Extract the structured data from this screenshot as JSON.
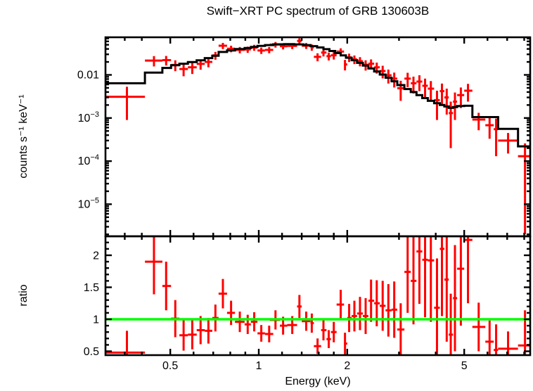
{
  "title": "Swift−XRT PC spectrum of GRB 130603B",
  "chart_data": {
    "type": "scatter",
    "description": "Two-panel X-ray spectrum: top = counts spectrum (log-log) with red data crosses and black folded-model histogram; bottom = data/model ratio (linear y, log x) with green unity line.",
    "title": "Swift−XRT PC spectrum of GRB 130603B",
    "xlabel": "Energy (keV)",
    "ylabel_top": "counts s⁻¹ keV⁻¹",
    "ylabel_bottom": "ratio",
    "x_scale": "log",
    "x_range": [
      0.3,
      8.38
    ],
    "top_y_scale": "log",
    "top_y_range": [
      1.8e-06,
      0.0746
    ],
    "bottom_y_scale": "linear",
    "bottom_y_range": [
      0.44,
      2.3
    ],
    "ratio_reference": 1,
    "grid": false,
    "legend": "none",
    "colors": {
      "data": "#ff0000",
      "model": "#000000",
      "ratio_line": "#00ff00",
      "frame": "#000000",
      "background": "#ffffff"
    },
    "x_ticks_major": [
      {
        "v": 0.5,
        "label": "0.5"
      },
      {
        "v": 1,
        "label": "1"
      },
      {
        "v": 2,
        "label": "2"
      },
      {
        "v": 5,
        "label": "5"
      }
    ],
    "x_ticks_minor": [
      0.35,
      0.4,
      0.6,
      0.7,
      0.8,
      0.9,
      1.2,
      1.4,
      1.6,
      1.8,
      3,
      4,
      6,
      7,
      8
    ],
    "top_y_ticks": [
      {
        "v": 0.01,
        "label": "0.01"
      },
      {
        "v": 0.001,
        "base": "10",
        "exp": "−3"
      },
      {
        "v": 0.0001,
        "base": "10",
        "exp": "−4"
      },
      {
        "v": 1e-05,
        "base": "10",
        "exp": "−5"
      }
    ],
    "bottom_y_ticks": [
      {
        "v": 0.5,
        "label": "0.5"
      },
      {
        "v": 1,
        "label": "1"
      },
      {
        "v": 1.5,
        "label": "1.5"
      },
      {
        "v": 2,
        "label": "2"
      }
    ],
    "model_steps": [
      [
        0.3,
        0.41,
        0.0064
      ],
      [
        0.41,
        0.47,
        0.0113
      ],
      [
        0.47,
        0.503,
        0.0145
      ],
      [
        0.503,
        0.537,
        0.0168
      ],
      [
        0.537,
        0.574,
        0.0182
      ],
      [
        0.574,
        0.615,
        0.0198
      ],
      [
        0.615,
        0.655,
        0.0218
      ],
      [
        0.655,
        0.695,
        0.0245
      ],
      [
        0.695,
        0.73,
        0.0278
      ],
      [
        0.73,
        0.78,
        0.034
      ],
      [
        0.78,
        0.83,
        0.0368
      ],
      [
        0.83,
        0.895,
        0.0397
      ],
      [
        0.895,
        0.94,
        0.0422
      ],
      [
        0.94,
        0.99,
        0.0446
      ],
      [
        0.99,
        1.05,
        0.047
      ],
      [
        1.05,
        1.12,
        0.0492
      ],
      [
        1.12,
        1.22,
        0.0512
      ],
      [
        1.22,
        1.32,
        0.0518
      ],
      [
        1.32,
        1.42,
        0.051
      ],
      [
        1.42,
        1.5,
        0.0492
      ],
      [
        1.5,
        1.58,
        0.0465
      ],
      [
        1.58,
        1.66,
        0.0432
      ],
      [
        1.66,
        1.74,
        0.0396
      ],
      [
        1.74,
        1.82,
        0.0358
      ],
      [
        1.82,
        1.9,
        0.032
      ],
      [
        1.9,
        1.98,
        0.0284
      ],
      [
        1.98,
        2.07,
        0.025
      ],
      [
        2.07,
        2.16,
        0.0219
      ],
      [
        2.16,
        2.26,
        0.019
      ],
      [
        2.26,
        2.36,
        0.0164
      ],
      [
        2.36,
        2.47,
        0.0141
      ],
      [
        2.47,
        2.58,
        0.012
      ],
      [
        2.58,
        2.7,
        0.0102
      ],
      [
        2.7,
        2.83,
        0.0086
      ],
      [
        2.83,
        2.96,
        0.0071
      ],
      [
        2.96,
        3.13,
        0.0058
      ],
      [
        3.13,
        3.29,
        0.0047
      ],
      [
        3.29,
        3.44,
        0.004
      ],
      [
        3.44,
        3.6,
        0.0034
      ],
      [
        3.6,
        3.76,
        0.0029
      ],
      [
        3.76,
        3.95,
        0.0025
      ],
      [
        3.95,
        4.13,
        0.0022
      ],
      [
        4.13,
        4.28,
        0.002
      ],
      [
        4.28,
        4.43,
        0.00185
      ],
      [
        4.43,
        4.58,
        0.00172
      ],
      [
        4.58,
        4.73,
        0.0018
      ],
      [
        4.73,
        5.0,
        0.0019
      ],
      [
        5.0,
        5.33,
        0.00192
      ],
      [
        5.33,
        6.52,
        0.00105
      ],
      [
        6.52,
        7.62,
        0.00056
      ],
      [
        7.62,
        8.38,
        0.00022
      ]
    ],
    "points_format": [
      "energy_keV",
      "e_lo",
      "e_hi",
      "counts",
      "counts_err",
      "ratio",
      "ratio_err"
    ],
    "points": [
      [
        0.356,
        0.3,
        0.41,
        0.0031,
        0.0022,
        0.48,
        0.34
      ],
      [
        0.44,
        0.41,
        0.47,
        0.0215,
        0.0058,
        1.9,
        0.51
      ],
      [
        0.484,
        0.47,
        0.503,
        0.022,
        0.0055,
        1.52,
        0.38
      ],
      [
        0.52,
        0.503,
        0.537,
        0.017,
        0.0048,
        1.01,
        0.29
      ],
      [
        0.555,
        0.537,
        0.574,
        0.0137,
        0.0044,
        0.75,
        0.24
      ],
      [
        0.594,
        0.574,
        0.615,
        0.015,
        0.0045,
        0.76,
        0.23
      ],
      [
        0.634,
        0.615,
        0.655,
        0.018,
        0.0048,
        0.83,
        0.22
      ],
      [
        0.674,
        0.655,
        0.695,
        0.02,
        0.005,
        0.82,
        0.2
      ],
      [
        0.712,
        0.695,
        0.73,
        0.0283,
        0.0058,
        1.02,
        0.21
      ],
      [
        0.755,
        0.73,
        0.78,
        0.0475,
        0.0078,
        1.4,
        0.23
      ],
      [
        0.805,
        0.78,
        0.83,
        0.0405,
        0.007,
        1.1,
        0.19
      ],
      [
        0.862,
        0.83,
        0.895,
        0.038,
        0.0064,
        0.96,
        0.16
      ],
      [
        0.917,
        0.895,
        0.94,
        0.0388,
        0.0064,
        0.92,
        0.15
      ],
      [
        0.965,
        0.94,
        0.99,
        0.043,
        0.0068,
        0.96,
        0.15
      ],
      [
        1.02,
        0.99,
        1.05,
        0.0368,
        0.0062,
        0.78,
        0.13
      ],
      [
        1.085,
        1.05,
        1.12,
        0.038,
        0.0063,
        0.77,
        0.13
      ],
      [
        1.14,
        1.09,
        1.18,
        0.0505,
        0.0075,
        0.99,
        0.15
      ],
      [
        1.21,
        1.18,
        1.25,
        0.0462,
        0.0072,
        0.9,
        0.14
      ],
      [
        1.3,
        1.25,
        1.35,
        0.047,
        0.0073,
        0.91,
        0.14
      ],
      [
        1.375,
        1.35,
        1.4,
        0.0615,
        0.009,
        1.2,
        0.18
      ],
      [
        1.45,
        1.4,
        1.5,
        0.0475,
        0.0075,
        0.97,
        0.15
      ],
      [
        1.515,
        1.5,
        1.54,
        0.0435,
        0.0072,
        0.94,
        0.15
      ],
      [
        1.585,
        1.54,
        1.63,
        0.0262,
        0.0055,
        0.58,
        0.12
      ],
      [
        1.66,
        1.63,
        1.7,
        0.033,
        0.0062,
        0.83,
        0.16
      ],
      [
        1.73,
        1.7,
        1.76,
        0.0272,
        0.0056,
        0.69,
        0.14
      ],
      [
        1.8,
        1.76,
        1.84,
        0.0285,
        0.0058,
        0.8,
        0.16
      ],
      [
        1.9,
        1.84,
        1.95,
        0.0348,
        0.0065,
        1.23,
        0.23
      ],
      [
        1.965,
        1.95,
        2.0,
        0.0175,
        0.0048,
        0.62,
        0.17
      ],
      [
        2.03,
        2.0,
        2.07,
        0.0255,
        0.0056,
        1.02,
        0.22
      ],
      [
        2.115,
        2.07,
        2.16,
        0.023,
        0.0052,
        1.05,
        0.24
      ],
      [
        2.21,
        2.16,
        2.26,
        0.0208,
        0.005,
        1.09,
        0.26
      ],
      [
        2.31,
        2.26,
        2.36,
        0.0172,
        0.0046,
        1.05,
        0.28
      ],
      [
        2.41,
        2.36,
        2.47,
        0.0182,
        0.0047,
        1.29,
        0.33
      ],
      [
        2.52,
        2.47,
        2.58,
        0.015,
        0.0043,
        1.25,
        0.36
      ],
      [
        2.64,
        2.58,
        2.7,
        0.0123,
        0.004,
        1.21,
        0.39
      ],
      [
        2.76,
        2.7,
        2.83,
        0.0098,
        0.0035,
        1.14,
        0.41
      ],
      [
        2.89,
        2.83,
        2.96,
        0.0082,
        0.0031,
        1.15,
        0.44
      ],
      [
        3.04,
        2.96,
        3.13,
        0.0049,
        0.0024,
        0.84,
        0.41
      ],
      [
        3.21,
        3.13,
        3.29,
        0.0082,
        0.003,
        1.74,
        0.64
      ],
      [
        3.36,
        3.29,
        3.44,
        0.0064,
        0.0027,
        1.6,
        0.68
      ],
      [
        3.52,
        3.44,
        3.6,
        0.007,
        0.0028,
        2.06,
        0.82
      ],
      [
        3.68,
        3.6,
        3.76,
        0.0056,
        0.0026,
        1.93,
        0.9
      ],
      [
        3.85,
        3.76,
        3.95,
        0.0048,
        0.0024,
        1.92,
        0.96
      ],
      [
        4.04,
        3.95,
        4.13,
        0.0026,
        0.0017,
        1.18,
        0.77
      ],
      [
        4.2,
        4.13,
        4.28,
        0.0042,
        0.0021,
        2.1,
        1.05
      ],
      [
        4.36,
        4.28,
        4.43,
        0.003,
        0.0018,
        1.62,
        0.97
      ],
      [
        4.5,
        4.43,
        4.58,
        0.0013,
        0.0011,
        0.76,
        0.64
      ],
      [
        4.65,
        4.58,
        4.73,
        0.0024,
        0.0015,
        1.33,
        0.83
      ],
      [
        4.87,
        4.73,
        5.0,
        0.0034,
        0.0017,
        1.79,
        0.89
      ],
      [
        5.15,
        5.0,
        5.33,
        0.0043,
        0.0019,
        2.24,
        0.99
      ],
      [
        5.6,
        5.33,
        5.9,
        0.00092,
        0.0004,
        0.88,
        0.38
      ],
      [
        6.1,
        5.9,
        6.3,
        0.00068,
        0.00035,
        0.65,
        0.33
      ],
      [
        6.42,
        6.3,
        6.52,
        0.00055,
        0.00042,
        0.52,
        0.4
      ],
      [
        7.05,
        6.52,
        7.62,
        0.0003,
        0.00015,
        0.54,
        0.27
      ],
      [
        8.05,
        7.62,
        8.38,
        0.00013,
        0.000128,
        0.59,
        0.55
      ]
    ]
  }
}
